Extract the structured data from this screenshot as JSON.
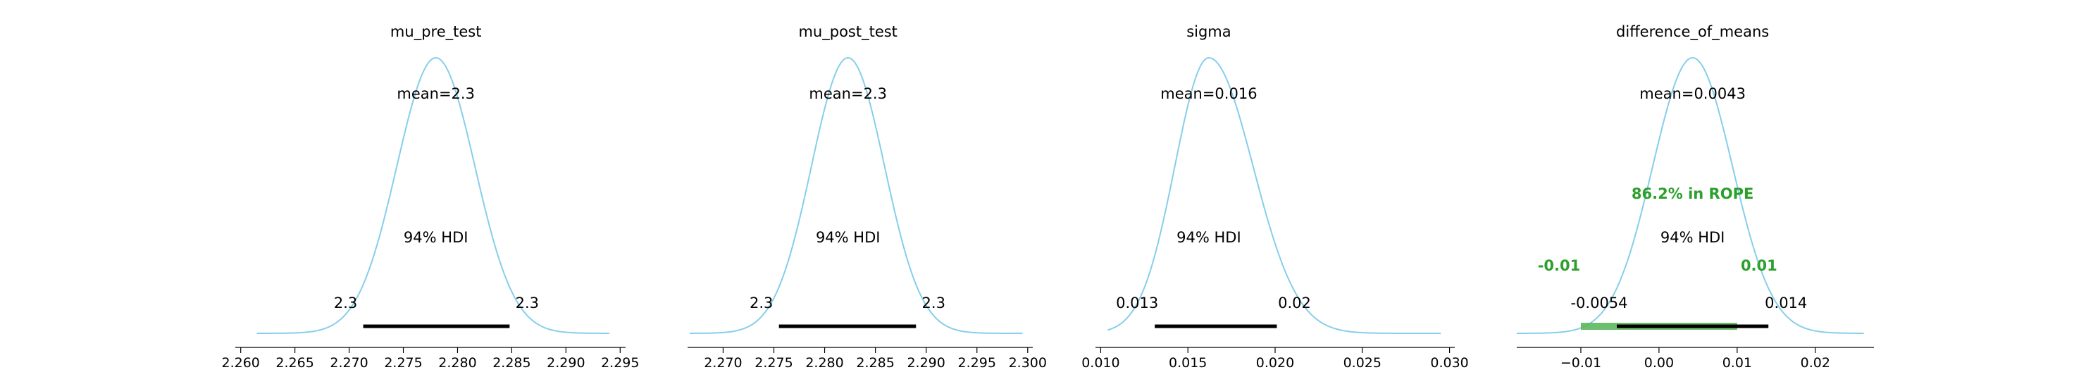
{
  "colors": {
    "kde": "#87ceeb",
    "hdi": "#000000",
    "rope": "#2ca02c",
    "rope_band": "#5cb85c",
    "axis": "#000000",
    "text": "#000000"
  },
  "chart_data": [
    {
      "type": "area",
      "title": "mu_pre_test",
      "mean_label": "mean=2.3",
      "mean": 2.278,
      "std": 0.0036,
      "x_range": [
        2.2615,
        2.294
      ],
      "xlim": [
        2.2595,
        2.2955
      ],
      "ticks": [
        2.26,
        2.265,
        2.27,
        2.275,
        2.28,
        2.285,
        2.29,
        2.295
      ],
      "tick_labels": [
        "2.260",
        "2.265",
        "2.270",
        "2.275",
        "2.280",
        "2.285",
        "2.290",
        "2.295"
      ],
      "hdi_label": "94% HDI",
      "hdi": [
        2.2713,
        2.2848
      ],
      "hdi_labels": [
        "2.3",
        "2.3"
      ]
    },
    {
      "type": "area",
      "title": "mu_post_test",
      "mean_label": "mean=2.3",
      "mean": 2.2823,
      "std": 0.0036,
      "x_range": [
        2.2667,
        2.2995
      ],
      "xlim": [
        2.2665,
        2.3005
      ],
      "ticks": [
        2.27,
        2.275,
        2.28,
        2.285,
        2.29,
        2.295,
        2.3
      ],
      "tick_labels": [
        "2.270",
        "2.275",
        "2.280",
        "2.285",
        "2.290",
        "2.295",
        "2.300"
      ],
      "hdi_label": "94% HDI",
      "hdi": [
        2.2755,
        2.289
      ],
      "hdi_labels": [
        "2.3",
        "2.3"
      ]
    },
    {
      "type": "area",
      "title": "sigma",
      "mean_label": "mean=0.016",
      "mean": 0.0162,
      "std": 0.00195,
      "skew": 0.3,
      "x_range": [
        0.0104,
        0.0295
      ],
      "xlim": [
        0.0097,
        0.0303
      ],
      "ticks": [
        0.01,
        0.015,
        0.02,
        0.025,
        0.03
      ],
      "tick_labels": [
        "0.010",
        "0.015",
        "0.020",
        "0.025",
        "0.030"
      ],
      "hdi_label": "94% HDI",
      "hdi": [
        0.0131,
        0.0201
      ],
      "hdi_labels": [
        "0.013",
        "0.02"
      ]
    },
    {
      "type": "area",
      "title": "difference_of_means",
      "mean_label": "mean=0.0043",
      "mean": 0.0043,
      "std": 0.0051,
      "x_range": [
        -0.0182,
        0.0262
      ],
      "xlim": [
        -0.0182,
        0.0275
      ],
      "ticks": [
        -0.01,
        0.0,
        0.01,
        0.02
      ],
      "tick_labels": [
        "−0.01",
        "0.00",
        "0.01",
        "0.02"
      ],
      "hdi_label": "94% HDI",
      "hdi": [
        -0.0054,
        0.014
      ],
      "hdi_labels": [
        "-0.0054",
        "0.014"
      ],
      "rope": [
        -0.01,
        0.01
      ],
      "rope_labels": [
        "-0.01",
        "0.01"
      ],
      "rope_text": "86.2% in ROPE"
    }
  ]
}
